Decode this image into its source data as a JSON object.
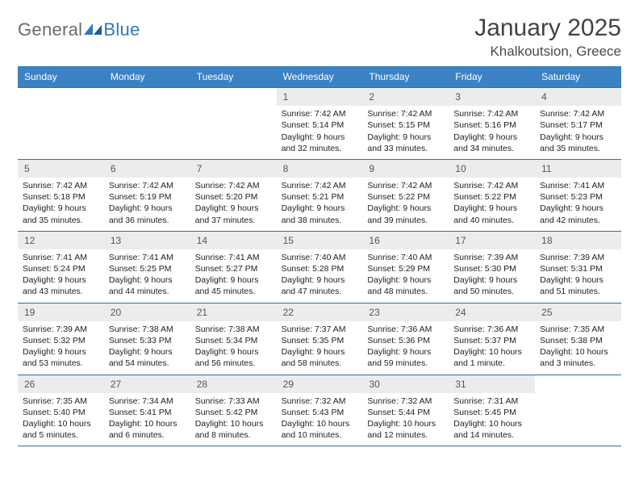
{
  "brand": {
    "part1": "General",
    "part2": "Blue"
  },
  "title": "January 2025",
  "location": "Khalkoutsion, Greece",
  "colors": {
    "header_bar": "#3a82c4",
    "rule": "#2f6fa8",
    "daynum_bg": "#ececec",
    "text": "#222222",
    "title_text": "#434343",
    "logo_gray": "#6b6b6b",
    "logo_blue": "#2f78bd"
  },
  "weekdays": [
    "Sunday",
    "Monday",
    "Tuesday",
    "Wednesday",
    "Thursday",
    "Friday",
    "Saturday"
  ],
  "weeks": [
    [
      {
        "day": "",
        "lines": []
      },
      {
        "day": "",
        "lines": []
      },
      {
        "day": "",
        "lines": []
      },
      {
        "day": "1",
        "lines": [
          "Sunrise: 7:42 AM",
          "Sunset: 5:14 PM",
          "Daylight: 9 hours",
          "and 32 minutes."
        ]
      },
      {
        "day": "2",
        "lines": [
          "Sunrise: 7:42 AM",
          "Sunset: 5:15 PM",
          "Daylight: 9 hours",
          "and 33 minutes."
        ]
      },
      {
        "day": "3",
        "lines": [
          "Sunrise: 7:42 AM",
          "Sunset: 5:16 PM",
          "Daylight: 9 hours",
          "and 34 minutes."
        ]
      },
      {
        "day": "4",
        "lines": [
          "Sunrise: 7:42 AM",
          "Sunset: 5:17 PM",
          "Daylight: 9 hours",
          "and 35 minutes."
        ]
      }
    ],
    [
      {
        "day": "5",
        "lines": [
          "Sunrise: 7:42 AM",
          "Sunset: 5:18 PM",
          "Daylight: 9 hours",
          "and 35 minutes."
        ]
      },
      {
        "day": "6",
        "lines": [
          "Sunrise: 7:42 AM",
          "Sunset: 5:19 PM",
          "Daylight: 9 hours",
          "and 36 minutes."
        ]
      },
      {
        "day": "7",
        "lines": [
          "Sunrise: 7:42 AM",
          "Sunset: 5:20 PM",
          "Daylight: 9 hours",
          "and 37 minutes."
        ]
      },
      {
        "day": "8",
        "lines": [
          "Sunrise: 7:42 AM",
          "Sunset: 5:21 PM",
          "Daylight: 9 hours",
          "and 38 minutes."
        ]
      },
      {
        "day": "9",
        "lines": [
          "Sunrise: 7:42 AM",
          "Sunset: 5:22 PM",
          "Daylight: 9 hours",
          "and 39 minutes."
        ]
      },
      {
        "day": "10",
        "lines": [
          "Sunrise: 7:42 AM",
          "Sunset: 5:22 PM",
          "Daylight: 9 hours",
          "and 40 minutes."
        ]
      },
      {
        "day": "11",
        "lines": [
          "Sunrise: 7:41 AM",
          "Sunset: 5:23 PM",
          "Daylight: 9 hours",
          "and 42 minutes."
        ]
      }
    ],
    [
      {
        "day": "12",
        "lines": [
          "Sunrise: 7:41 AM",
          "Sunset: 5:24 PM",
          "Daylight: 9 hours",
          "and 43 minutes."
        ]
      },
      {
        "day": "13",
        "lines": [
          "Sunrise: 7:41 AM",
          "Sunset: 5:25 PM",
          "Daylight: 9 hours",
          "and 44 minutes."
        ]
      },
      {
        "day": "14",
        "lines": [
          "Sunrise: 7:41 AM",
          "Sunset: 5:27 PM",
          "Daylight: 9 hours",
          "and 45 minutes."
        ]
      },
      {
        "day": "15",
        "lines": [
          "Sunrise: 7:40 AM",
          "Sunset: 5:28 PM",
          "Daylight: 9 hours",
          "and 47 minutes."
        ]
      },
      {
        "day": "16",
        "lines": [
          "Sunrise: 7:40 AM",
          "Sunset: 5:29 PM",
          "Daylight: 9 hours",
          "and 48 minutes."
        ]
      },
      {
        "day": "17",
        "lines": [
          "Sunrise: 7:39 AM",
          "Sunset: 5:30 PM",
          "Daylight: 9 hours",
          "and 50 minutes."
        ]
      },
      {
        "day": "18",
        "lines": [
          "Sunrise: 7:39 AM",
          "Sunset: 5:31 PM",
          "Daylight: 9 hours",
          "and 51 minutes."
        ]
      }
    ],
    [
      {
        "day": "19",
        "lines": [
          "Sunrise: 7:39 AM",
          "Sunset: 5:32 PM",
          "Daylight: 9 hours",
          "and 53 minutes."
        ]
      },
      {
        "day": "20",
        "lines": [
          "Sunrise: 7:38 AM",
          "Sunset: 5:33 PM",
          "Daylight: 9 hours",
          "and 54 minutes."
        ]
      },
      {
        "day": "21",
        "lines": [
          "Sunrise: 7:38 AM",
          "Sunset: 5:34 PM",
          "Daylight: 9 hours",
          "and 56 minutes."
        ]
      },
      {
        "day": "22",
        "lines": [
          "Sunrise: 7:37 AM",
          "Sunset: 5:35 PM",
          "Daylight: 9 hours",
          "and 58 minutes."
        ]
      },
      {
        "day": "23",
        "lines": [
          "Sunrise: 7:36 AM",
          "Sunset: 5:36 PM",
          "Daylight: 9 hours",
          "and 59 minutes."
        ]
      },
      {
        "day": "24",
        "lines": [
          "Sunrise: 7:36 AM",
          "Sunset: 5:37 PM",
          "Daylight: 10 hours",
          "and 1 minute."
        ]
      },
      {
        "day": "25",
        "lines": [
          "Sunrise: 7:35 AM",
          "Sunset: 5:38 PM",
          "Daylight: 10 hours",
          "and 3 minutes."
        ]
      }
    ],
    [
      {
        "day": "26",
        "lines": [
          "Sunrise: 7:35 AM",
          "Sunset: 5:40 PM",
          "Daylight: 10 hours",
          "and 5 minutes."
        ]
      },
      {
        "day": "27",
        "lines": [
          "Sunrise: 7:34 AM",
          "Sunset: 5:41 PM",
          "Daylight: 10 hours",
          "and 6 minutes."
        ]
      },
      {
        "day": "28",
        "lines": [
          "Sunrise: 7:33 AM",
          "Sunset: 5:42 PM",
          "Daylight: 10 hours",
          "and 8 minutes."
        ]
      },
      {
        "day": "29",
        "lines": [
          "Sunrise: 7:32 AM",
          "Sunset: 5:43 PM",
          "Daylight: 10 hours",
          "and 10 minutes."
        ]
      },
      {
        "day": "30",
        "lines": [
          "Sunrise: 7:32 AM",
          "Sunset: 5:44 PM",
          "Daylight: 10 hours",
          "and 12 minutes."
        ]
      },
      {
        "day": "31",
        "lines": [
          "Sunrise: 7:31 AM",
          "Sunset: 5:45 PM",
          "Daylight: 10 hours",
          "and 14 minutes."
        ]
      },
      {
        "day": "",
        "lines": []
      }
    ]
  ]
}
